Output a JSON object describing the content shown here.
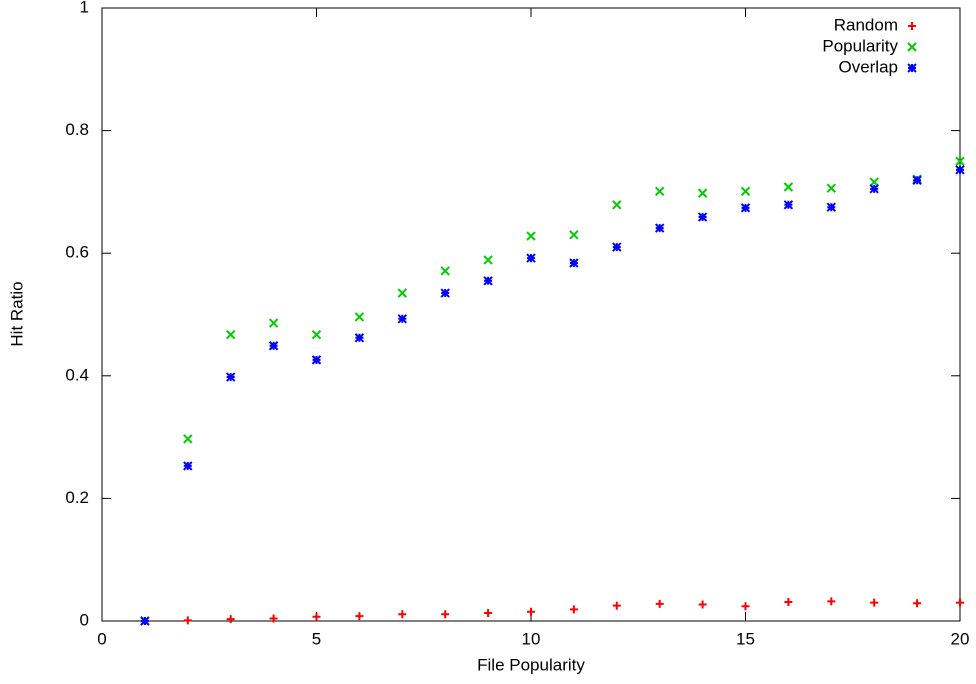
{
  "chart_data": {
    "type": "scatter",
    "x_label": "File Popularity",
    "y_label": "Hit Ratio",
    "x": [
      1,
      2,
      3,
      4,
      5,
      6,
      7,
      8,
      9,
      10,
      11,
      12,
      13,
      14,
      15,
      16,
      17,
      18,
      19,
      20
    ],
    "series": [
      {
        "name": "Random",
        "color": "#ff0000",
        "marker": "plus",
        "values": [
          0,
          0.001,
          0.003,
          0.004,
          0.007,
          0.008,
          0.011,
          0.011,
          0.013,
          0.015,
          0.019,
          0.025,
          0.028,
          0.027,
          0.024,
          0.031,
          0.032,
          0.03,
          0.029,
          0.03
        ]
      },
      {
        "name": "Popularity",
        "color": "#00cc00",
        "marker": "cross",
        "values": [
          0,
          0.297,
          0.467,
          0.486,
          0.467,
          0.496,
          0.535,
          0.571,
          0.589,
          0.628,
          0.63,
          0.679,
          0.701,
          0.698,
          0.701,
          0.708,
          0.706,
          0.716,
          0.721,
          0.75
        ]
      },
      {
        "name": "Overlap",
        "color": "#0000ff",
        "marker": "star",
        "values": [
          0,
          0.253,
          0.398,
          0.449,
          0.426,
          0.462,
          0.493,
          0.535,
          0.555,
          0.592,
          0.584,
          0.61,
          0.641,
          0.659,
          0.674,
          0.679,
          0.675,
          0.705,
          0.719,
          0.736
        ]
      }
    ],
    "xlim": [
      0,
      20
    ],
    "xticks": [
      0,
      5,
      10,
      15,
      20
    ],
    "ylim": [
      0,
      1
    ],
    "yticks": [
      0,
      0.2,
      0.4,
      0.6,
      0.8,
      1
    ],
    "legend": "top right",
    "grid": false
  }
}
